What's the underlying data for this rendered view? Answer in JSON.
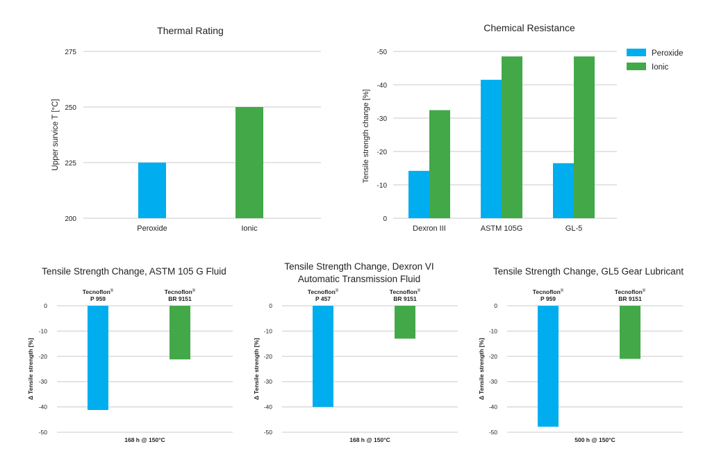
{
  "colors": {
    "peroxide": "#00aeef",
    "ionic": "#43a848",
    "grid": "#c8c8c8",
    "text": "#222222"
  },
  "chart_data": [
    {
      "id": "thermal",
      "type": "bar",
      "title": "Thermal Rating",
      "ylabel": "Upper survice T [°C]",
      "xlabel": "",
      "ylim": [
        200,
        275
      ],
      "yticks": [
        200,
        225,
        250,
        275
      ],
      "categories": [
        "Peroxide",
        "Ionic"
      ],
      "values": [
        225,
        250
      ],
      "bar_colors": [
        "#00aeef",
        "#43a848"
      ]
    },
    {
      "id": "chemical",
      "type": "bar",
      "title": "Chemical Resistance",
      "ylabel": "Tensile strength change [%]",
      "xlabel": "",
      "ylim": [
        0,
        -50
      ],
      "yticks": [
        0,
        -10,
        -20,
        -30,
        -40,
        -50
      ],
      "categories": [
        "Dexron III",
        "ASTM 105G",
        "GL-5"
      ],
      "series": [
        {
          "name": "Peroxide",
          "color": "#00aeef",
          "values": [
            -14.2,
            -41.5,
            -16.5
          ]
        },
        {
          "name": "Ionic",
          "color": "#43a848",
          "values": [
            -32.4,
            -48.5,
            -48.5
          ]
        }
      ],
      "legend": "top-right"
    },
    {
      "id": "astm",
      "type": "bar",
      "title": "Tensile Strength Change, ASTM 105 G Fluid",
      "ylabel": "Δ Tensile strength [%]",
      "xlabel": "168 h @ 150°C",
      "ylim": [
        0,
        -50
      ],
      "yticks": [
        0,
        -10,
        -20,
        -30,
        -40,
        -50
      ],
      "categories": [
        {
          "line1": "Tecnoflon",
          "mark": "®",
          "line2": "P 959"
        },
        {
          "line1": "Tecnoflon",
          "mark": "®",
          "line2": "BR 9151"
        }
      ],
      "values": [
        -41.2,
        -21.2
      ],
      "bar_colors": [
        "#00aeef",
        "#43a848"
      ]
    },
    {
      "id": "dexron",
      "type": "bar",
      "title": "Tensile Strength Change, Dexron VI",
      "subtitle": "Automatic Transmission Fluid",
      "ylabel": "Δ Tensile strength [%]",
      "xlabel": "168 h @ 150°C",
      "ylim": [
        0,
        -50
      ],
      "yticks": [
        0,
        -10,
        -20,
        -30,
        -40,
        -50
      ],
      "categories": [
        {
          "line1": "Tecnoflon",
          "mark": "®",
          "line2": "P 457"
        },
        {
          "line1": "Tecnoflon",
          "mark": "®",
          "line2": "BR 9151"
        }
      ],
      "values": [
        -40.0,
        -13.0
      ],
      "bar_colors": [
        "#00aeef",
        "#43a848"
      ]
    },
    {
      "id": "gl5",
      "type": "bar",
      "title": "Tensile Strength Change, GL5 Gear Lubricant",
      "ylabel": "Δ Tensile strength [%]",
      "xlabel": "500 h @ 150°C",
      "ylim": [
        0,
        -50
      ],
      "yticks": [
        0,
        -10,
        -20,
        -30,
        -40,
        -50
      ],
      "categories": [
        {
          "line1": "Tecnoflon",
          "mark": "®",
          "line2": "P 959"
        },
        {
          "line1": "Tecnoflon",
          "mark": "®",
          "line2": "BR 9151"
        }
      ],
      "values": [
        -47.8,
        -21.0
      ],
      "bar_colors": [
        "#00aeef",
        "#43a848"
      ]
    }
  ]
}
